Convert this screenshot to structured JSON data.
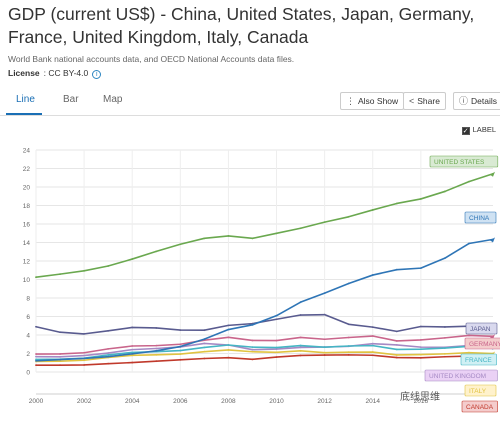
{
  "header": {
    "title": "GDP (current US$) - China, United States, Japan, Germany, France, United Kingdom, Italy, Canada",
    "source": "World Bank national accounts data, and OECD National Accounts data files.",
    "license_label": "License",
    "license_value": ": CC BY-4.0",
    "info_icon": "info-icon"
  },
  "tabs": [
    {
      "label": "Line",
      "active": true
    },
    {
      "label": "Bar",
      "active": false
    },
    {
      "label": "Map",
      "active": false
    }
  ],
  "toolbar": {
    "also_show": "Also Show",
    "share": "Share",
    "details": "Details",
    "label_toggle": "LABEL"
  },
  "watermark": "底线思维",
  "chart_data": {
    "type": "line",
    "x": [
      2000,
      2001,
      2002,
      2003,
      2004,
      2005,
      2006,
      2007,
      2008,
      2009,
      2010,
      2011,
      2012,
      2013,
      2014,
      2015,
      2016,
      2017,
      2018,
      2019
    ],
    "xticks": [
      "2000",
      "2002",
      "2004",
      "2006",
      "2008",
      "2010",
      "2012",
      "2014",
      "2016"
    ],
    "yticks": [
      "0",
      "2",
      "4",
      "6",
      "8",
      "10",
      "12",
      "14",
      "16",
      "18",
      "20",
      "22",
      "24"
    ],
    "ylim": [
      0,
      24
    ],
    "xlim": [
      2000,
      2019
    ],
    "grid": true,
    "series": [
      {
        "name": "UNITED STATES",
        "color": "#6aa84f",
        "label_bg": "#d9ead3",
        "values": [
          10.25,
          10.58,
          10.94,
          11.46,
          12.21,
          13.04,
          13.81,
          14.45,
          14.71,
          14.45,
          14.99,
          15.54,
          16.2,
          16.78,
          17.52,
          18.22,
          18.71,
          19.52,
          20.58,
          21.43
        ]
      },
      {
        "name": "CHINA",
        "color": "#2e75b6",
        "label_bg": "#cfe2f3",
        "values": [
          1.21,
          1.34,
          1.47,
          1.66,
          1.96,
          2.29,
          2.75,
          3.55,
          4.59,
          5.1,
          6.09,
          7.55,
          8.53,
          9.57,
          10.48,
          11.06,
          11.23,
          12.31,
          13.89,
          14.34
        ]
      },
      {
        "name": "JAPAN",
        "color": "#595b8f",
        "label_bg": "#d9d9ee",
        "values": [
          4.89,
          4.3,
          4.12,
          4.45,
          4.82,
          4.76,
          4.53,
          4.52,
          5.04,
          5.23,
          5.7,
          6.16,
          6.2,
          5.16,
          4.85,
          4.39,
          4.92,
          4.87,
          4.95,
          5.08
        ]
      },
      {
        "name": "GERMANY",
        "color": "#c9658b",
        "label_bg": "#f4cccc",
        "values": [
          1.94,
          1.95,
          2.08,
          2.5,
          2.81,
          2.85,
          3.0,
          3.44,
          3.75,
          3.41,
          3.4,
          3.74,
          3.54,
          3.73,
          3.89,
          3.36,
          3.47,
          3.69,
          3.95,
          3.86
        ]
      },
      {
        "name": "FRANCE",
        "color": "#45b5c4",
        "label_bg": "#d0f0f4",
        "values": [
          1.36,
          1.38,
          1.49,
          1.84,
          2.12,
          2.2,
          2.32,
          2.66,
          2.92,
          2.69,
          2.64,
          2.86,
          2.68,
          2.81,
          2.85,
          2.44,
          2.47,
          2.59,
          2.78,
          2.72
        ]
      },
      {
        "name": "UNITED KINGDOM",
        "color": "#a589c4",
        "label_bg": "#ead1f5",
        "values": [
          1.66,
          1.64,
          1.78,
          2.05,
          2.42,
          2.54,
          2.71,
          3.09,
          2.92,
          2.41,
          2.48,
          2.66,
          2.7,
          2.78,
          3.06,
          2.93,
          2.69,
          2.67,
          2.86,
          2.83
        ]
      },
      {
        "name": "ITALY",
        "color": "#e0c341",
        "label_bg": "#fff2cc",
        "values": [
          1.14,
          1.17,
          1.27,
          1.57,
          1.8,
          1.86,
          1.94,
          2.2,
          2.39,
          2.19,
          2.13,
          2.29,
          2.09,
          2.14,
          2.16,
          1.84,
          1.88,
          1.96,
          2.09,
          2.0
        ]
      },
      {
        "name": "CANADA",
        "color": "#c0392b",
        "label_bg": "#f4cccc",
        "values": [
          0.74,
          0.74,
          0.76,
          0.9,
          1.02,
          1.17,
          1.32,
          1.46,
          1.55,
          1.37,
          1.61,
          1.79,
          1.83,
          1.85,
          1.81,
          1.56,
          1.53,
          1.65,
          1.72,
          1.74
        ]
      }
    ]
  }
}
